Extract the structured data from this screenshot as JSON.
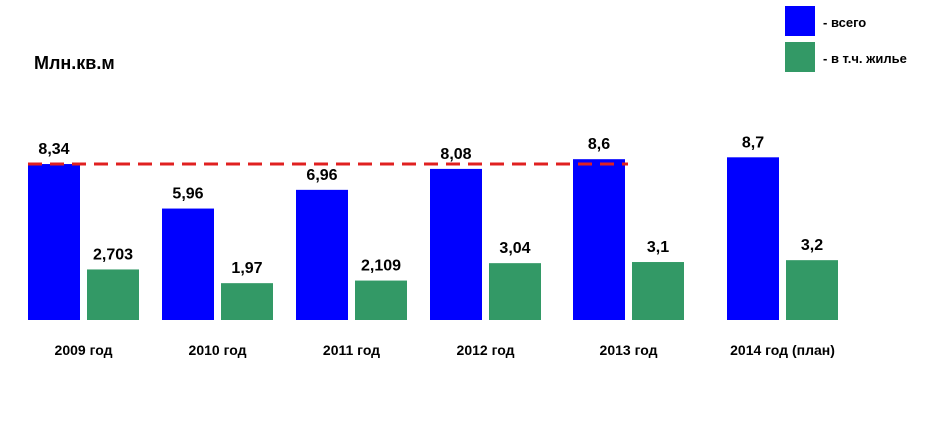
{
  "chart_data": {
    "type": "bar",
    "unit_label": "Млн.кв.м",
    "categories": [
      "2009 год",
      "2010 год",
      "2011 год",
      "2012 год",
      "2013 год",
      "2014 год (план)"
    ],
    "series": [
      {
        "name": "- всего",
        "color": "#0000ff",
        "values": [
          8.34,
          5.96,
          6.96,
          8.08,
          8.6,
          8.7
        ],
        "labels": [
          "8,34",
          "5,96",
          "6,96",
          "8,08",
          "8,6",
          "8,7"
        ]
      },
      {
        "name": "- в т.ч. жилье",
        "color": "#339966",
        "values": [
          2.703,
          1.97,
          2.109,
          3.04,
          3.1,
          3.2
        ],
        "labels": [
          "2,703",
          "1,97",
          "2,109",
          "3,04",
          "3,1",
          "3,2"
        ]
      }
    ],
    "reference_line": {
      "value": 8.34,
      "color": "#e02020",
      "style": "dashed"
    },
    "legend_position": "top-right",
    "grid": false
  }
}
